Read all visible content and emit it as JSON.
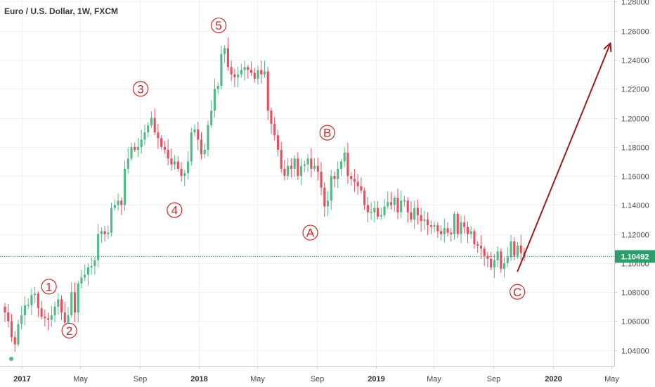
{
  "chart_data": {
    "type": "candlestick",
    "title": "Euro / U.S. Dollar, 1W, FXCM",
    "xlabel": "",
    "ylabel": "",
    "ylim": [
      1.02922,
      1.28118
    ],
    "y_ticks": [
      "1.04000",
      "1.06000",
      "1.08000",
      "1.10000",
      "1.12000",
      "1.14000",
      "1.16000",
      "1.18000",
      "1.20000",
      "1.22000",
      "1.24000",
      "1.26000",
      "1.28000"
    ],
    "x_ticks": [
      {
        "label": "2017",
        "date": "2017-01-01",
        "year": true
      },
      {
        "label": "May",
        "date": "2017-05-01",
        "year": false
      },
      {
        "label": "Sep",
        "date": "2017-09-01",
        "year": false
      },
      {
        "label": "2018",
        "date": "2018-01-01",
        "year": true
      },
      {
        "label": "May",
        "date": "2018-05-01",
        "year": false
      },
      {
        "label": "Sep",
        "date": "2018-09-01",
        "year": false
      },
      {
        "label": "2019",
        "date": "2019-01-01",
        "year": true
      },
      {
        "label": "May",
        "date": "2019-05-01",
        "year": false
      },
      {
        "label": "Sep",
        "date": "2019-09-01",
        "year": false
      },
      {
        "label": "2020",
        "date": "2020-01-01",
        "year": true
      },
      {
        "label": "May",
        "date": "2020-05-01",
        "year": false
      }
    ],
    "grid": true,
    "current_price": {
      "label": "1.10492",
      "value": 1.10492
    },
    "colors": {
      "up": "#53b987",
      "down": "#eb4d5c",
      "wick_up": "#53b987",
      "wick_down": "#eb4d5c",
      "annotation": "#c62828",
      "projection": "#9b1c1c",
      "price_tag": "#2e9e6e"
    },
    "candle_levels": [
      1.066,
      1.06,
      1.049,
      1.044,
      1.058,
      1.064,
      1.071,
      1.071,
      1.078,
      1.079,
      1.069,
      1.063,
      1.062,
      1.061,
      1.064,
      1.07,
      1.075,
      1.066,
      1.059,
      1.064,
      1.08,
      1.066,
      1.086,
      1.09,
      1.092,
      1.097,
      1.098,
      1.102,
      1.12,
      1.122,
      1.12,
      1.121,
      1.138,
      1.14,
      1.143,
      1.14,
      1.165,
      1.172,
      1.18,
      1.178,
      1.18,
      1.185,
      1.19,
      1.195,
      1.2,
      1.19,
      1.186,
      1.18,
      1.178,
      1.172,
      1.168,
      1.17,
      1.165,
      1.16,
      1.162,
      1.17,
      1.19,
      1.192,
      1.185,
      1.175,
      1.178,
      1.195,
      1.205,
      1.22,
      1.222,
      1.244,
      1.248,
      1.235,
      1.23,
      1.228,
      1.23,
      1.233,
      1.235,
      1.233,
      1.231,
      1.227,
      1.233,
      1.23,
      1.232,
      1.205,
      1.196,
      1.188,
      1.178,
      1.165,
      1.16,
      1.167,
      1.165,
      1.172,
      1.16,
      1.167,
      1.168,
      1.172,
      1.165,
      1.167,
      1.163,
      1.152,
      1.139,
      1.143,
      1.16,
      1.158,
      1.165,
      1.17,
      1.176,
      1.16,
      1.158,
      1.156,
      1.153,
      1.15,
      1.14,
      1.135,
      1.135,
      1.138,
      1.132,
      1.133,
      1.139,
      1.142,
      1.14,
      1.145,
      1.135,
      1.143,
      1.143,
      1.135,
      1.13,
      1.138,
      1.133,
      1.129,
      1.13,
      1.126,
      1.125,
      1.126,
      1.122,
      1.12,
      1.124,
      1.121,
      1.12,
      1.134,
      1.12,
      1.128,
      1.125,
      1.12,
      1.122,
      1.113,
      1.112,
      1.11,
      1.105,
      1.103,
      1.097,
      1.102,
      1.108,
      1.096,
      1.1,
      1.104,
      1.115,
      1.105,
      1.112,
      1.107,
      1.104
    ],
    "wave_labels": [
      {
        "label": "1",
        "date": "2017-02-26",
        "price": 1.0838
      },
      {
        "label": "2",
        "date": "2017-04-09",
        "price": 1.0535
      },
      {
        "label": "3",
        "date": "2017-09-03",
        "price": 1.22
      },
      {
        "label": "4",
        "date": "2017-11-12",
        "price": 1.1365
      },
      {
        "label": "5",
        "date": "2018-02-11",
        "price": 1.2637
      },
      {
        "label": "A",
        "date": "2018-08-19",
        "price": 1.121
      },
      {
        "label": "B",
        "date": "2018-09-23",
        "price": 1.1898
      },
      {
        "label": "C",
        "date": "2019-10-20",
        "price": 1.0802
      }
    ],
    "projection": {
      "from": {
        "date": "2019-10-20",
        "price": 1.094
      },
      "to": {
        "date": "2020-04-29",
        "price": 1.2515
      }
    }
  }
}
